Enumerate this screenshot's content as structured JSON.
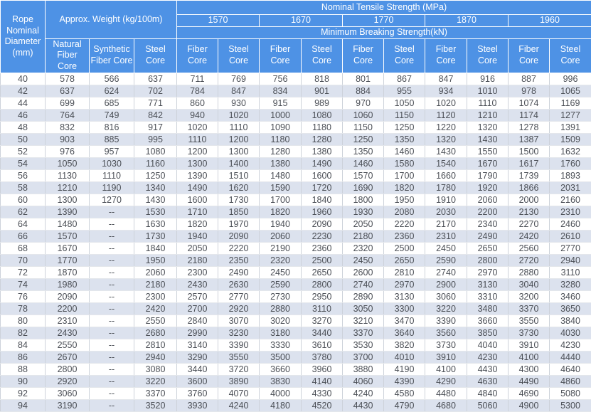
{
  "header": {
    "diameter_label": "Rope Nominal Diameter (mm)",
    "weight_group_label": "Approx. Weight (kg/100m)",
    "weight_subcols": [
      "Natural Fiber Core",
      "Synthetic Fiber Core",
      "Steel Core"
    ],
    "tensile_title": "Nominal Tensile Strength  (MPa)",
    "tensile_values": [
      "1570",
      "1670",
      "1770",
      "1870",
      "1960"
    ],
    "breaking_title": "Minimum Breaking Strength(kN)",
    "fiber_core_label": "Fiber Core",
    "steel_core_label": "Steel Core"
  },
  "colors": {
    "header_bg": "#4e92e5",
    "header_text": "#ffffff",
    "row_alt_bg": "#dce2ee",
    "body_text": "#4b4f56"
  },
  "rows": [
    {
      "d": "40",
      "w": [
        "578",
        "566",
        "637"
      ],
      "s": [
        "711",
        "769",
        "756",
        "818",
        "801",
        "867",
        "847",
        "916",
        "887",
        "996"
      ]
    },
    {
      "d": "42",
      "w": [
        "637",
        "624",
        "702"
      ],
      "s": [
        "784",
        "847",
        "834",
        "901",
        "884",
        "955",
        "934",
        "1010",
        "978",
        "1065"
      ]
    },
    {
      "d": "44",
      "w": [
        "699",
        "685",
        "771"
      ],
      "s": [
        "860",
        "930",
        "915",
        "989",
        "970",
        "1050",
        "1020",
        "1110",
        "1074",
        "1169"
      ]
    },
    {
      "d": "46",
      "w": [
        "764",
        "749",
        "842"
      ],
      "s": [
        "940",
        "1020",
        "1000",
        "1080",
        "1060",
        "1150",
        "1120",
        "1210",
        "1174",
        "1277"
      ]
    },
    {
      "d": "48",
      "w": [
        "832",
        "816",
        "917"
      ],
      "s": [
        "1020",
        "1110",
        "1090",
        "1180",
        "1150",
        "1250",
        "1220",
        "1320",
        "1278",
        "1391"
      ]
    },
    {
      "d": "50",
      "w": [
        "903",
        "885",
        "995"
      ],
      "s": [
        "1110",
        "1200",
        "1180",
        "1280",
        "1250",
        "1350",
        "1320",
        "1430",
        "1387",
        "1509"
      ]
    },
    {
      "d": "52",
      "w": [
        "976",
        "957",
        "1080"
      ],
      "s": [
        "1200",
        "1300",
        "1280",
        "1380",
        "1350",
        "1460",
        "1430",
        "1550",
        "1500",
        "1632"
      ]
    },
    {
      "d": "54",
      "w": [
        "1050",
        "1030",
        "1160"
      ],
      "s": [
        "1300",
        "1400",
        "1380",
        "1490",
        "1460",
        "1580",
        "1540",
        "1670",
        "1617",
        "1760"
      ]
    },
    {
      "d": "56",
      "w": [
        "1130",
        "1110",
        "1250"
      ],
      "s": [
        "1390",
        "1510",
        "1480",
        "1600",
        "1570",
        "1700",
        "1660",
        "1790",
        "1739",
        "1893"
      ]
    },
    {
      "d": "58",
      "w": [
        "1210",
        "1190",
        "1340"
      ],
      "s": [
        "1490",
        "1620",
        "1590",
        "1720",
        "1690",
        "1820",
        "1780",
        "1920",
        "1866",
        "2031"
      ]
    },
    {
      "d": "60",
      "w": [
        "1300",
        "1270",
        "1430"
      ],
      "s": [
        "1600",
        "1730",
        "1700",
        "1840",
        "1800",
        "1950",
        "1910",
        "2060",
        "2000",
        "2160"
      ]
    },
    {
      "d": "62",
      "w": [
        "1390",
        "--",
        "1530"
      ],
      "s": [
        "1710",
        "1850",
        "1820",
        "1960",
        "1930",
        "2080",
        "2030",
        "2200",
        "2130",
        "2310"
      ]
    },
    {
      "d": "64",
      "w": [
        "1480",
        "--",
        "1630"
      ],
      "s": [
        "1820",
        "1970",
        "1940",
        "2090",
        "2050",
        "2220",
        "2170",
        "2340",
        "2270",
        "2460"
      ]
    },
    {
      "d": "66",
      "w": [
        "1570",
        "--",
        "1730"
      ],
      "s": [
        "1940",
        "2090",
        "2060",
        "2230",
        "2180",
        "2360",
        "2310",
        "2490",
        "2420",
        "2610"
      ]
    },
    {
      "d": "68",
      "w": [
        "1670",
        "--",
        "1840"
      ],
      "s": [
        "2050",
        "2220",
        "2190",
        "2360",
        "2320",
        "2500",
        "2450",
        "2650",
        "2560",
        "2770"
      ]
    },
    {
      "d": "70",
      "w": [
        "1770",
        "--",
        "1950"
      ],
      "s": [
        "2180",
        "2350",
        "2320",
        "2500",
        "2450",
        "2650",
        "2590",
        "2800",
        "2720",
        "2940"
      ]
    },
    {
      "d": "72",
      "w": [
        "1870",
        "--",
        "2060"
      ],
      "s": [
        "2300",
        "2490",
        "2450",
        "2650",
        "2600",
        "2810",
        "2740",
        "2970",
        "2880",
        "3110"
      ]
    },
    {
      "d": "74",
      "w": [
        "1980",
        "--",
        "2180"
      ],
      "s": [
        "2430",
        "2630",
        "2590",
        "2800",
        "2740",
        "2970",
        "2900",
        "3130",
        "3040",
        "3280"
      ]
    },
    {
      "d": "76",
      "w": [
        "2090",
        "--",
        "2300"
      ],
      "s": [
        "2570",
        "2770",
        "2730",
        "2950",
        "2890",
        "3130",
        "3060",
        "3310",
        "3200",
        "3460"
      ]
    },
    {
      "d": "78",
      "w": [
        "2200",
        "--",
        "2420"
      ],
      "s": [
        "2700",
        "2920",
        "2880",
        "3110",
        "3050",
        "3300",
        "3220",
        "3480",
        "3370",
        "3650"
      ]
    },
    {
      "d": "80",
      "w": [
        "2310",
        "--",
        "2550"
      ],
      "s": [
        "2840",
        "3070",
        "3020",
        "3270",
        "3210",
        "3470",
        "3390",
        "3660",
        "3550",
        "3840"
      ]
    },
    {
      "d": "82",
      "w": [
        "2430",
        "--",
        "2680"
      ],
      "s": [
        "2990",
        "3230",
        "3180",
        "3440",
        "3370",
        "3640",
        "3560",
        "3850",
        "3730",
        "4030"
      ]
    },
    {
      "d": "84",
      "w": [
        "2550",
        "--",
        "2810"
      ],
      "s": [
        "3140",
        "3390",
        "3330",
        "3610",
        "3530",
        "3820",
        "3730",
        "4040",
        "3910",
        "4230"
      ]
    },
    {
      "d": "86",
      "w": [
        "2670",
        "--",
        "2940"
      ],
      "s": [
        "3290",
        "3550",
        "3500",
        "3780",
        "3700",
        "4010",
        "3910",
        "4230",
        "4100",
        "4440"
      ]
    },
    {
      "d": "88",
      "w": [
        "2800",
        "--",
        "3080"
      ],
      "s": [
        "3440",
        "3720",
        "3660",
        "3960",
        "3880",
        "4190",
        "4100",
        "4430",
        "4300",
        "4640"
      ]
    },
    {
      "d": "90",
      "w": [
        "2920",
        "--",
        "3220"
      ],
      "s": [
        "3600",
        "3890",
        "3830",
        "4140",
        "4060",
        "4390",
        "4290",
        "4630",
        "4490",
        "4860"
      ]
    },
    {
      "d": "92",
      "w": [
        "3060",
        "--",
        "3370"
      ],
      "s": [
        "3760",
        "4070",
        "4000",
        "4330",
        "4240",
        "4580",
        "4480",
        "4840",
        "4690",
        "5080"
      ]
    },
    {
      "d": "94",
      "w": [
        "3190",
        "--",
        "3520"
      ],
      "s": [
        "3930",
        "4240",
        "4180",
        "4520",
        "4430",
        "4790",
        "4680",
        "5060",
        "4900",
        "5300"
      ]
    }
  ]
}
